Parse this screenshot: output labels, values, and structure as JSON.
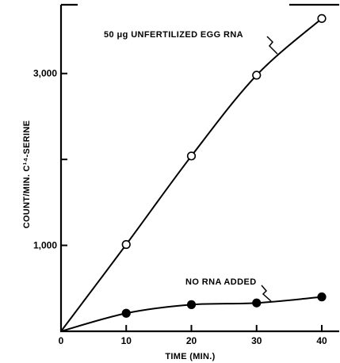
{
  "chart_data": {
    "type": "line",
    "xlabel": "TIME (MIN.)",
    "ylabel": "COUNT/MIN. C¹⁴-SERINE",
    "xlim": [
      0,
      40
    ],
    "ylim": [
      0,
      3800
    ],
    "x_ticks": [
      0,
      10,
      20,
      30,
      40
    ],
    "x_tick_labels": [
      "0",
      "10",
      "20",
      "30",
      "40"
    ],
    "y_tick_labels": [
      {
        "value": 1000,
        "label": "1,000"
      },
      {
        "value": 3000,
        "label": "3,000"
      }
    ],
    "y_minor_ticks": [
      2000
    ],
    "grid": false,
    "series": [
      {
        "name": "50 μg UNFERTILIZED EGG RNA",
        "marker": "open-circle",
        "x": [
          10,
          20,
          30,
          40
        ],
        "y": [
          1010,
          2040,
          2980,
          3640
        ]
      },
      {
        "name": "NO RNA ADDED",
        "marker": "filled-circle",
        "x": [
          10,
          20,
          30,
          40
        ],
        "y": [
          210,
          310,
          330,
          400
        ]
      }
    ],
    "annotations": [
      "50 μg UNFERTILIZED EGG RNA",
      "NO RNA ADDED"
    ]
  }
}
